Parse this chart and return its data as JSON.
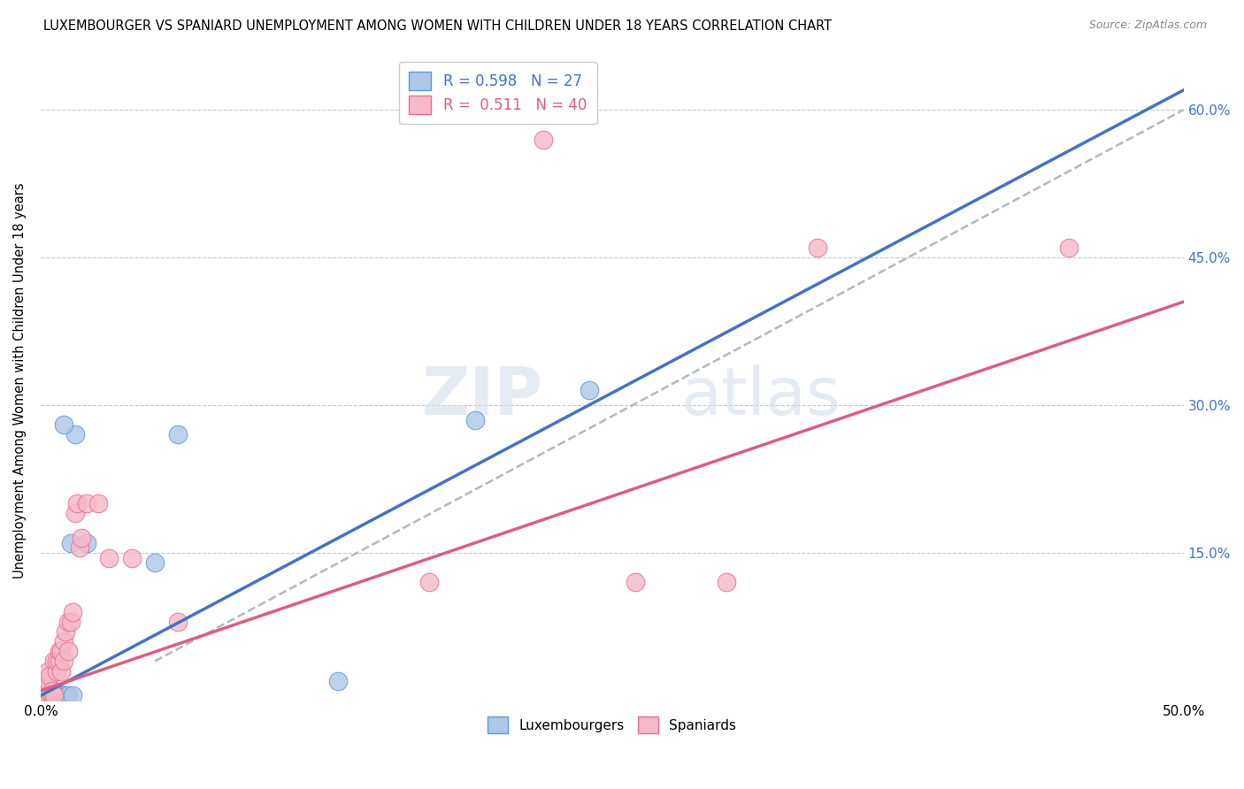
{
  "title": "LUXEMBOURGER VS SPANIARD UNEMPLOYMENT AMONG WOMEN WITH CHILDREN UNDER 18 YEARS CORRELATION CHART",
  "source": "Source: ZipAtlas.com",
  "ylabel": "Unemployment Among Women with Children Under 18 years",
  "xlim": [
    0.0,
    0.5
  ],
  "ylim": [
    0.0,
    0.65
  ],
  "xticks": [
    0.0,
    0.05,
    0.1,
    0.15,
    0.2,
    0.25,
    0.3,
    0.35,
    0.4,
    0.45,
    0.5
  ],
  "yticks": [
    0.0,
    0.15,
    0.3,
    0.45,
    0.6
  ],
  "background_color": "#ffffff",
  "grid_color": "#c8c8c8",
  "lux_R": 0.598,
  "lux_N": 27,
  "spa_R": 0.511,
  "spa_N": 40,
  "lux_color": "#aec6e8",
  "spa_color": "#f5b8c8",
  "lux_edge_color": "#5b9bd5",
  "spa_edge_color": "#e87090",
  "lux_line_color": "#4472c4",
  "spa_line_color": "#d95f80",
  "dash_line_color": "#b0b8c0",
  "lux_line": [
    [
      0.0,
      0.005
    ],
    [
      0.5,
      0.62
    ]
  ],
  "spa_line": [
    [
      0.0,
      0.01
    ],
    [
      0.5,
      0.405
    ]
  ],
  "dash_line": [
    [
      0.05,
      0.04
    ],
    [
      0.5,
      0.6
    ]
  ],
  "lux_scatter": [
    [
      0.0,
      0.0
    ],
    [
      0.0,
      0.005
    ],
    [
      0.001,
      0.0
    ],
    [
      0.001,
      0.01
    ],
    [
      0.002,
      0.005
    ],
    [
      0.003,
      0.005
    ],
    [
      0.003,
      0.01
    ],
    [
      0.004,
      0.005
    ],
    [
      0.005,
      0.005
    ],
    [
      0.005,
      0.005
    ],
    [
      0.006,
      0.0
    ],
    [
      0.007,
      0.0
    ],
    [
      0.008,
      0.0
    ],
    [
      0.009,
      0.005
    ],
    [
      0.01,
      0.005
    ],
    [
      0.011,
      0.005
    ],
    [
      0.012,
      0.005
    ],
    [
      0.013,
      0.16
    ],
    [
      0.014,
      0.005
    ],
    [
      0.015,
      0.27
    ],
    [
      0.02,
      0.16
    ],
    [
      0.05,
      0.14
    ],
    [
      0.06,
      0.27
    ],
    [
      0.01,
      0.28
    ],
    [
      0.19,
      0.285
    ],
    [
      0.24,
      0.315
    ],
    [
      0.13,
      0.02
    ]
  ],
  "spa_scatter": [
    [
      0.0,
      0.005
    ],
    [
      0.001,
      0.01
    ],
    [
      0.002,
      0.005
    ],
    [
      0.002,
      0.02
    ],
    [
      0.003,
      0.01
    ],
    [
      0.003,
      0.02
    ],
    [
      0.003,
      0.03
    ],
    [
      0.004,
      0.025
    ],
    [
      0.005,
      0.005
    ],
    [
      0.005,
      0.01
    ],
    [
      0.006,
      0.005
    ],
    [
      0.006,
      0.04
    ],
    [
      0.007,
      0.03
    ],
    [
      0.007,
      0.04
    ],
    [
      0.008,
      0.04
    ],
    [
      0.008,
      0.05
    ],
    [
      0.009,
      0.03
    ],
    [
      0.009,
      0.05
    ],
    [
      0.01,
      0.04
    ],
    [
      0.01,
      0.06
    ],
    [
      0.011,
      0.07
    ],
    [
      0.012,
      0.05
    ],
    [
      0.012,
      0.08
    ],
    [
      0.013,
      0.08
    ],
    [
      0.014,
      0.09
    ],
    [
      0.015,
      0.19
    ],
    [
      0.016,
      0.2
    ],
    [
      0.017,
      0.155
    ],
    [
      0.018,
      0.165
    ],
    [
      0.02,
      0.2
    ],
    [
      0.025,
      0.2
    ],
    [
      0.03,
      0.145
    ],
    [
      0.04,
      0.145
    ],
    [
      0.06,
      0.08
    ],
    [
      0.17,
      0.12
    ],
    [
      0.26,
      0.12
    ],
    [
      0.3,
      0.12
    ],
    [
      0.22,
      0.57
    ],
    [
      0.34,
      0.46
    ],
    [
      0.45,
      0.46
    ]
  ]
}
